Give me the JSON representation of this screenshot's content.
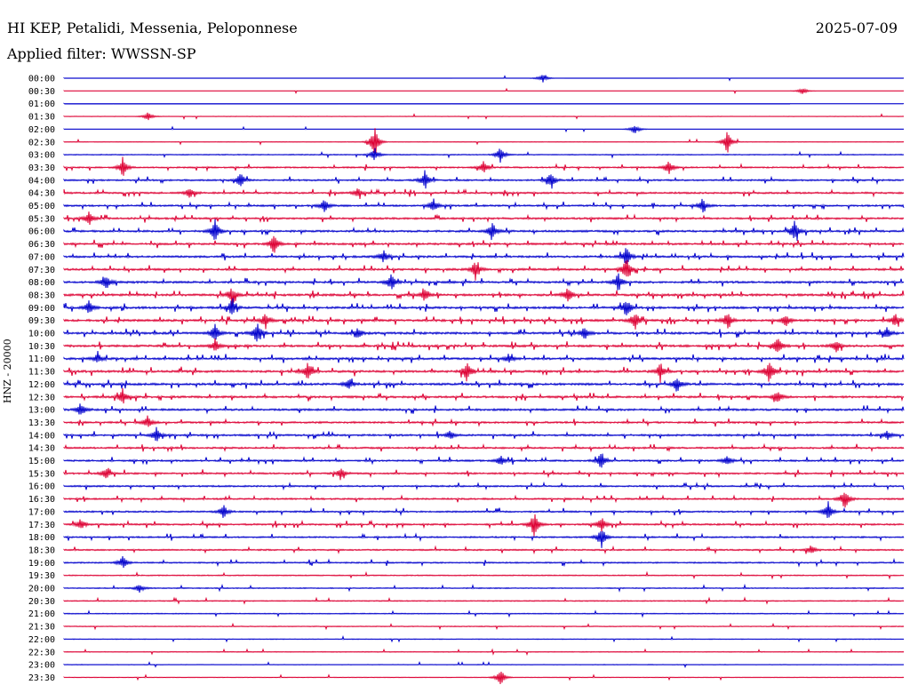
{
  "header": {
    "station": "HI KEP, Petalidi, Messenia, Peloponnese",
    "date": "2025-07-09",
    "filter": "Applied filter: WWSSN-SP"
  },
  "chart_data": {
    "type": "line",
    "title": "HI KEP, Petalidi, Messenia, Peloponnese",
    "ylabel": "HNZ - 20000",
    "colors": {
      "even": "#0000cc",
      "odd": "#dd0033"
    },
    "rows": [
      {
        "label": "00:00",
        "activity": 0.02,
        "events": [
          {
            "x": 0.57,
            "amp": 5
          }
        ]
      },
      {
        "label": "00:30",
        "activity": 0.02,
        "events": [
          {
            "x": 0.88,
            "amp": 4
          }
        ]
      },
      {
        "label": "01:00",
        "activity": 0.02,
        "events": []
      },
      {
        "label": "01:30",
        "activity": 0.05,
        "events": [
          {
            "x": 0.1,
            "amp": 5
          }
        ]
      },
      {
        "label": "02:00",
        "activity": 0.05,
        "events": [
          {
            "x": 0.68,
            "amp": 6
          }
        ]
      },
      {
        "label": "02:30",
        "activity": 0.1,
        "events": [
          {
            "x": 0.37,
            "amp": 18
          },
          {
            "x": 0.79,
            "amp": 14
          }
        ]
      },
      {
        "label": "03:00",
        "activity": 0.2,
        "events": [
          {
            "x": 0.37,
            "amp": 8
          },
          {
            "x": 0.52,
            "amp": 10
          }
        ]
      },
      {
        "label": "03:30",
        "activity": 0.4,
        "events": [
          {
            "x": 0.07,
            "amp": 12
          },
          {
            "x": 0.5,
            "amp": 8
          },
          {
            "x": 0.72,
            "amp": 10
          }
        ]
      },
      {
        "label": "04:00",
        "activity": 0.5,
        "events": [
          {
            "x": 0.21,
            "amp": 10
          },
          {
            "x": 0.43,
            "amp": 12
          },
          {
            "x": 0.58,
            "amp": 11
          }
        ]
      },
      {
        "label": "04:30",
        "activity": 0.55,
        "events": [
          {
            "x": 0.15,
            "amp": 7
          },
          {
            "x": 0.35,
            "amp": 6
          }
        ]
      },
      {
        "label": "05:00",
        "activity": 0.55,
        "events": [
          {
            "x": 0.31,
            "amp": 8
          },
          {
            "x": 0.44,
            "amp": 8
          },
          {
            "x": 0.76,
            "amp": 9
          }
        ]
      },
      {
        "label": "05:30",
        "activity": 0.6,
        "events": [
          {
            "x": 0.03,
            "amp": 9
          }
        ]
      },
      {
        "label": "06:00",
        "activity": 0.65,
        "events": [
          {
            "x": 0.18,
            "amp": 15
          },
          {
            "x": 0.51,
            "amp": 12
          },
          {
            "x": 0.87,
            "amp": 14
          }
        ]
      },
      {
        "label": "06:30",
        "activity": 0.65,
        "events": [
          {
            "x": 0.25,
            "amp": 12
          }
        ]
      },
      {
        "label": "07:00",
        "activity": 0.65,
        "events": [
          {
            "x": 0.38,
            "amp": 8
          },
          {
            "x": 0.67,
            "amp": 12
          }
        ]
      },
      {
        "label": "07:30",
        "activity": 0.7,
        "events": [
          {
            "x": 0.49,
            "amp": 10
          },
          {
            "x": 0.67,
            "amp": 14
          }
        ]
      },
      {
        "label": "08:00",
        "activity": 0.7,
        "events": [
          {
            "x": 0.05,
            "amp": 10
          },
          {
            "x": 0.39,
            "amp": 10
          },
          {
            "x": 0.66,
            "amp": 12
          }
        ]
      },
      {
        "label": "08:30",
        "activity": 0.75,
        "events": [
          {
            "x": 0.2,
            "amp": 10
          },
          {
            "x": 0.43,
            "amp": 9
          },
          {
            "x": 0.6,
            "amp": 11
          }
        ]
      },
      {
        "label": "09:00",
        "activity": 0.75,
        "events": [
          {
            "x": 0.03,
            "amp": 8
          },
          {
            "x": 0.2,
            "amp": 10
          },
          {
            "x": 0.67,
            "amp": 12
          }
        ]
      },
      {
        "label": "09:30",
        "activity": 0.75,
        "events": [
          {
            "x": 0.24,
            "amp": 10
          },
          {
            "x": 0.68,
            "amp": 12
          },
          {
            "x": 0.79,
            "amp": 10
          },
          {
            "x": 0.86,
            "amp": 9
          },
          {
            "x": 0.99,
            "amp": 9
          }
        ]
      },
      {
        "label": "10:00",
        "activity": 0.75,
        "events": [
          {
            "x": 0.18,
            "amp": 12
          },
          {
            "x": 0.23,
            "amp": 14
          },
          {
            "x": 0.35,
            "amp": 7
          },
          {
            "x": 0.62,
            "amp": 8
          },
          {
            "x": 0.98,
            "amp": 8
          }
        ]
      },
      {
        "label": "10:30",
        "activity": 0.75,
        "events": [
          {
            "x": 0.18,
            "amp": 8
          },
          {
            "x": 0.85,
            "amp": 12
          },
          {
            "x": 0.92,
            "amp": 8
          }
        ]
      },
      {
        "label": "11:00",
        "activity": 0.75,
        "events": [
          {
            "x": 0.04,
            "amp": 6
          },
          {
            "x": 0.53,
            "amp": 6
          }
        ]
      },
      {
        "label": "11:30",
        "activity": 0.75,
        "events": [
          {
            "x": 0.29,
            "amp": 10
          },
          {
            "x": 0.48,
            "amp": 12
          },
          {
            "x": 0.71,
            "amp": 10
          },
          {
            "x": 0.84,
            "amp": 14
          }
        ]
      },
      {
        "label": "12:00",
        "activity": 0.75,
        "events": [
          {
            "x": 0.34,
            "amp": 7
          },
          {
            "x": 0.73,
            "amp": 10
          }
        ]
      },
      {
        "label": "12:30",
        "activity": 0.7,
        "events": [
          {
            "x": 0.07,
            "amp": 10
          },
          {
            "x": 0.85,
            "amp": 10
          }
        ]
      },
      {
        "label": "13:00",
        "activity": 0.65,
        "events": [
          {
            "x": 0.02,
            "amp": 9
          }
        ]
      },
      {
        "label": "13:30",
        "activity": 0.6,
        "events": [
          {
            "x": 0.1,
            "amp": 8
          }
        ]
      },
      {
        "label": "14:00",
        "activity": 0.6,
        "events": [
          {
            "x": 0.11,
            "amp": 9
          },
          {
            "x": 0.46,
            "amp": 6
          },
          {
            "x": 0.98,
            "amp": 6
          }
        ]
      },
      {
        "label": "14:30",
        "activity": 0.55,
        "events": []
      },
      {
        "label": "15:00",
        "activity": 0.55,
        "events": [
          {
            "x": 0.52,
            "amp": 6
          },
          {
            "x": 0.64,
            "amp": 11
          },
          {
            "x": 0.79,
            "amp": 6
          }
        ]
      },
      {
        "label": "15:30",
        "activity": 0.55,
        "events": [
          {
            "x": 0.05,
            "amp": 7
          },
          {
            "x": 0.33,
            "amp": 7
          }
        ]
      },
      {
        "label": "16:00",
        "activity": 0.5,
        "events": []
      },
      {
        "label": "16:30",
        "activity": 0.5,
        "events": [
          {
            "x": 0.93,
            "amp": 14
          }
        ]
      },
      {
        "label": "17:00",
        "activity": 0.5,
        "events": [
          {
            "x": 0.19,
            "amp": 8
          },
          {
            "x": 0.91,
            "amp": 12
          }
        ]
      },
      {
        "label": "17:30",
        "activity": 0.55,
        "events": [
          {
            "x": 0.02,
            "amp": 7
          },
          {
            "x": 0.56,
            "amp": 16
          },
          {
            "x": 0.64,
            "amp": 10
          }
        ]
      },
      {
        "label": "18:00",
        "activity": 0.45,
        "events": [
          {
            "x": 0.64,
            "amp": 13
          }
        ]
      },
      {
        "label": "18:30",
        "activity": 0.4,
        "events": [
          {
            "x": 0.89,
            "amp": 6
          }
        ]
      },
      {
        "label": "19:00",
        "activity": 0.4,
        "events": [
          {
            "x": 0.07,
            "amp": 8
          }
        ]
      },
      {
        "label": "19:30",
        "activity": 0.25,
        "events": []
      },
      {
        "label": "20:00",
        "activity": 0.25,
        "events": [
          {
            "x": 0.09,
            "amp": 5
          }
        ]
      },
      {
        "label": "20:30",
        "activity": 0.25,
        "events": []
      },
      {
        "label": "21:00",
        "activity": 0.2,
        "events": []
      },
      {
        "label": "21:30",
        "activity": 0.15,
        "events": []
      },
      {
        "label": "22:00",
        "activity": 0.15,
        "events": []
      },
      {
        "label": "22:30",
        "activity": 0.15,
        "events": []
      },
      {
        "label": "23:00",
        "activity": 0.1,
        "events": []
      },
      {
        "label": "23:30",
        "activity": 0.1,
        "events": [
          {
            "x": 0.52,
            "amp": 10
          }
        ]
      }
    ]
  }
}
